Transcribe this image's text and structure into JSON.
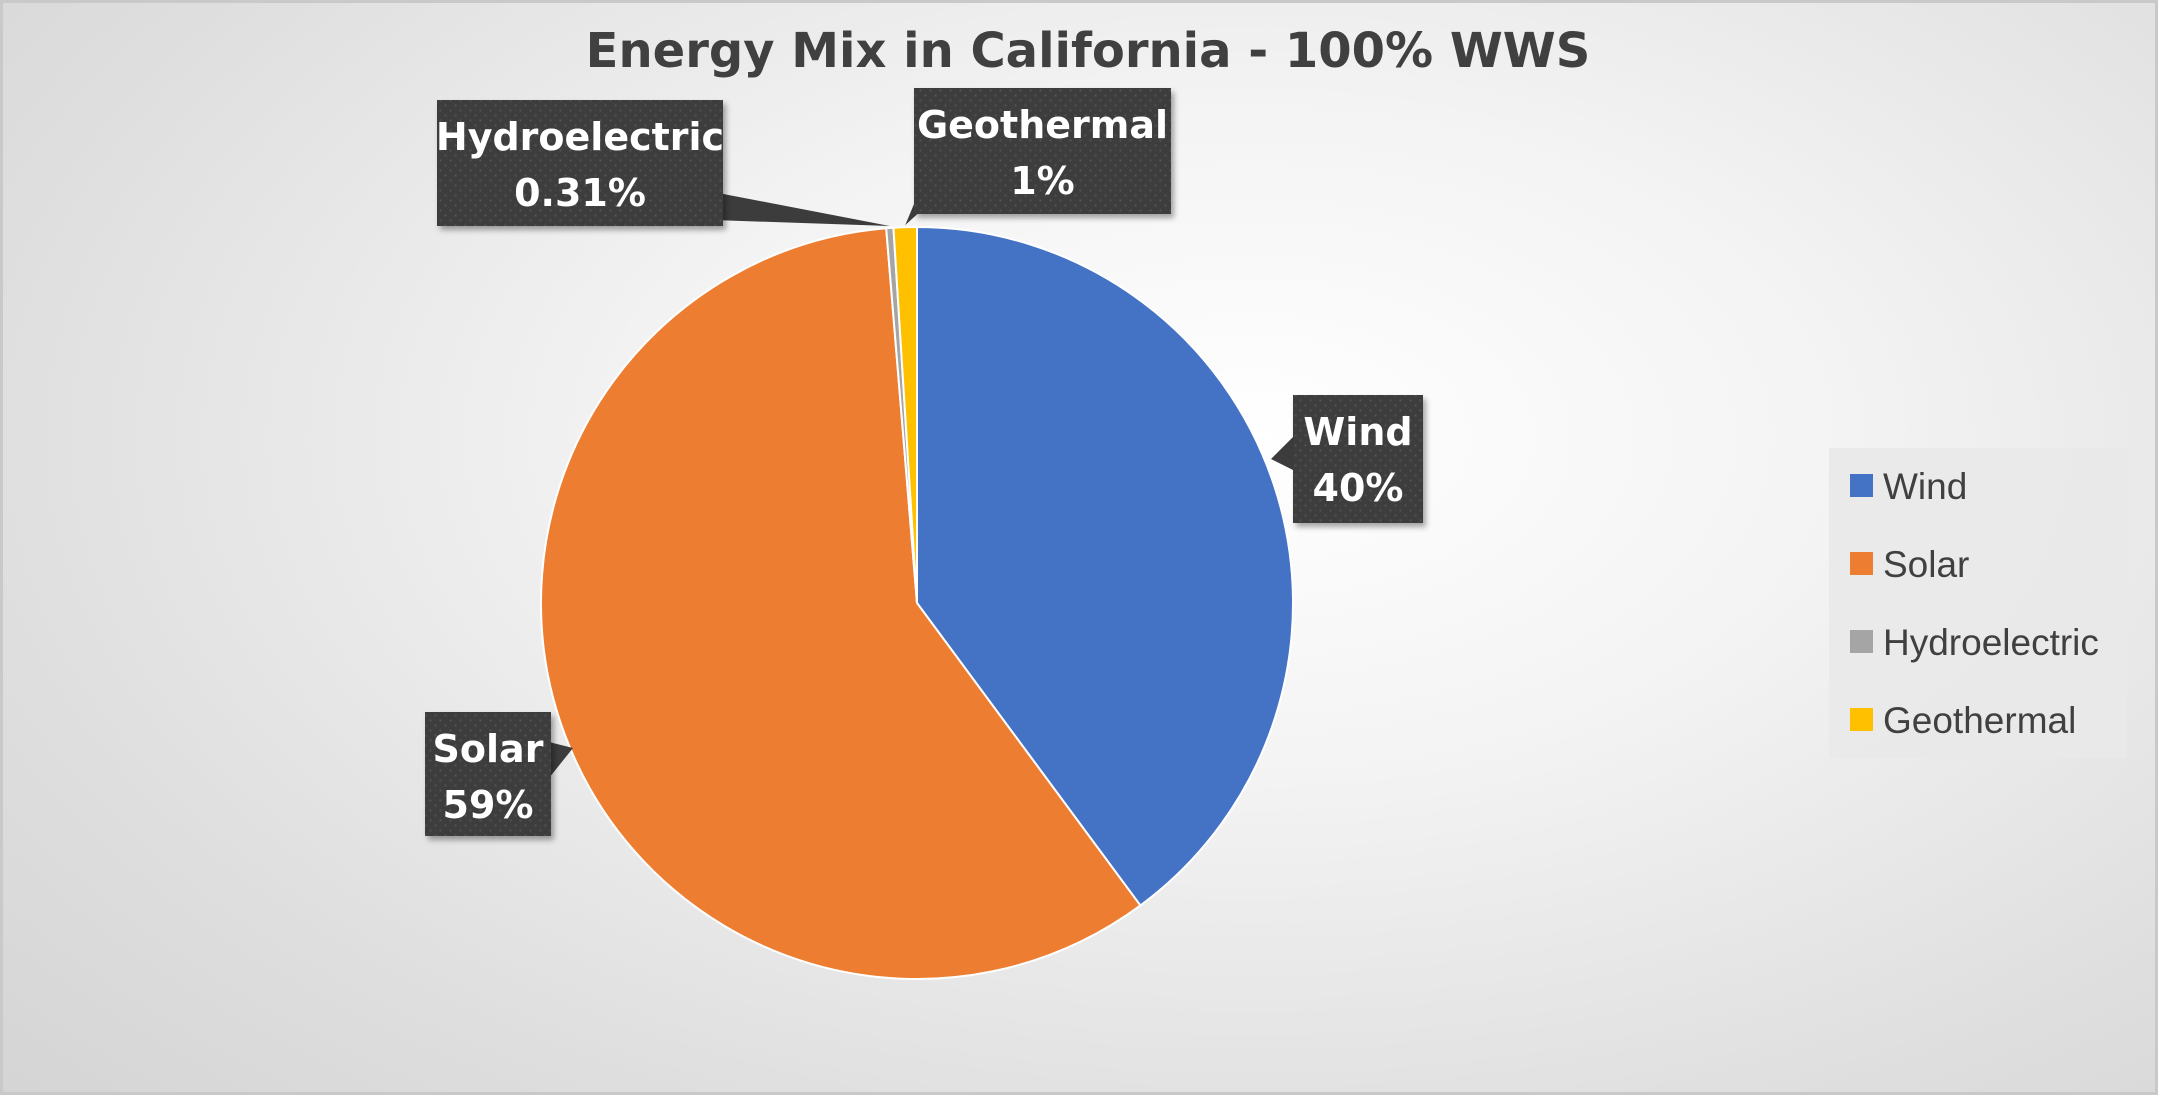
{
  "chart_data": {
    "type": "pie",
    "title": "Energy Mix in California - 100% WWS",
    "categories": [
      "Wind",
      "Solar",
      "Hydroelectric",
      "Geothermal"
    ],
    "values": [
      40,
      59,
      0.31,
      1
    ],
    "data_labels": [
      "40%",
      "59%",
      "0.31%",
      "1%"
    ],
    "colors": [
      "#4472C4",
      "#ED7D31",
      "#A5A5A5",
      "#FFC000"
    ],
    "legend": {
      "position": "right",
      "entries": [
        "Wind",
        "Solar",
        "Hydroelectric",
        "Geothermal"
      ]
    },
    "label_style": "dark callout boxes with category name and percentage"
  }
}
